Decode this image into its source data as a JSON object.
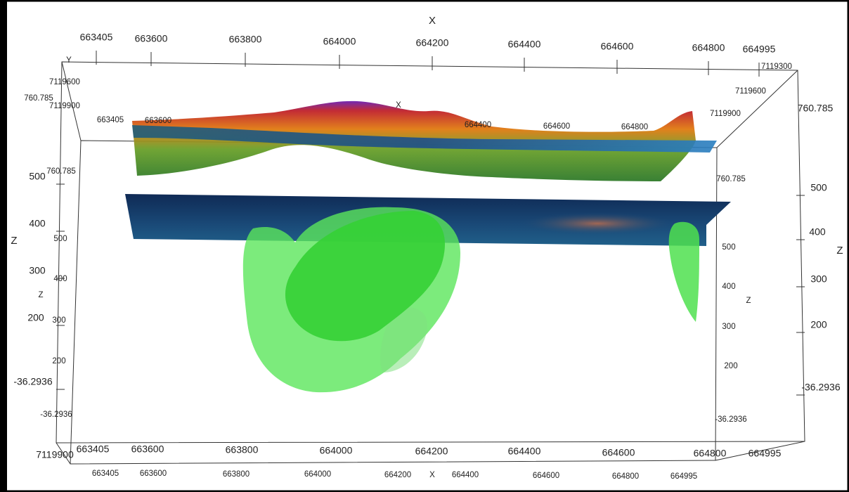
{
  "top_x_axis": {
    "title": "X",
    "ticks": [
      "663405",
      "663600",
      "663800",
      "664000",
      "664200",
      "664400",
      "664600",
      "664800",
      "664995"
    ]
  },
  "bottom_x_axis": {
    "title": "X",
    "ticks": [
      "663405",
      "663600",
      "663800",
      "664000",
      "664200",
      "664400",
      "664600",
      "664800",
      "664995"
    ]
  },
  "inner_bottom_x_axis": {
    "title": "X",
    "ticks": [
      "663405",
      "663600",
      "663800",
      "664000",
      "664200",
      "664400",
      "664600",
      "664800",
      "664995"
    ]
  },
  "inner_top_x_axis": {
    "title": "X",
    "ticks": [
      "663405",
      "663600",
      "664400",
      "664600",
      "664800"
    ]
  },
  "left_z_axis": {
    "title": "Z",
    "ticks": [
      "500",
      "400",
      "300",
      "200",
      "-36.2936"
    ]
  },
  "right_z_axis": {
    "title": "Z",
    "ticks": [
      "760.785",
      "500",
      "400",
      "300",
      "200",
      "-36.2936"
    ]
  },
  "inner_left_z_axis": {
    "title": "Z",
    "ticks": [
      "760.785",
      "500",
      "400",
      "300",
      "200",
      "-36.2936"
    ]
  },
  "inner_right_z_axis": {
    "title": "Z",
    "ticks": [
      "760.785",
      "500",
      "400",
      "300",
      "200",
      "-36.2936"
    ]
  },
  "left_y_axis": {
    "title": "Y",
    "ticks": [
      "7119600",
      "760.785",
      "7119900"
    ]
  },
  "right_y_axis": {
    "ticks": [
      "7119300",
      "7119600",
      "7119900"
    ]
  },
  "bottom_left_label": "7119900"
}
